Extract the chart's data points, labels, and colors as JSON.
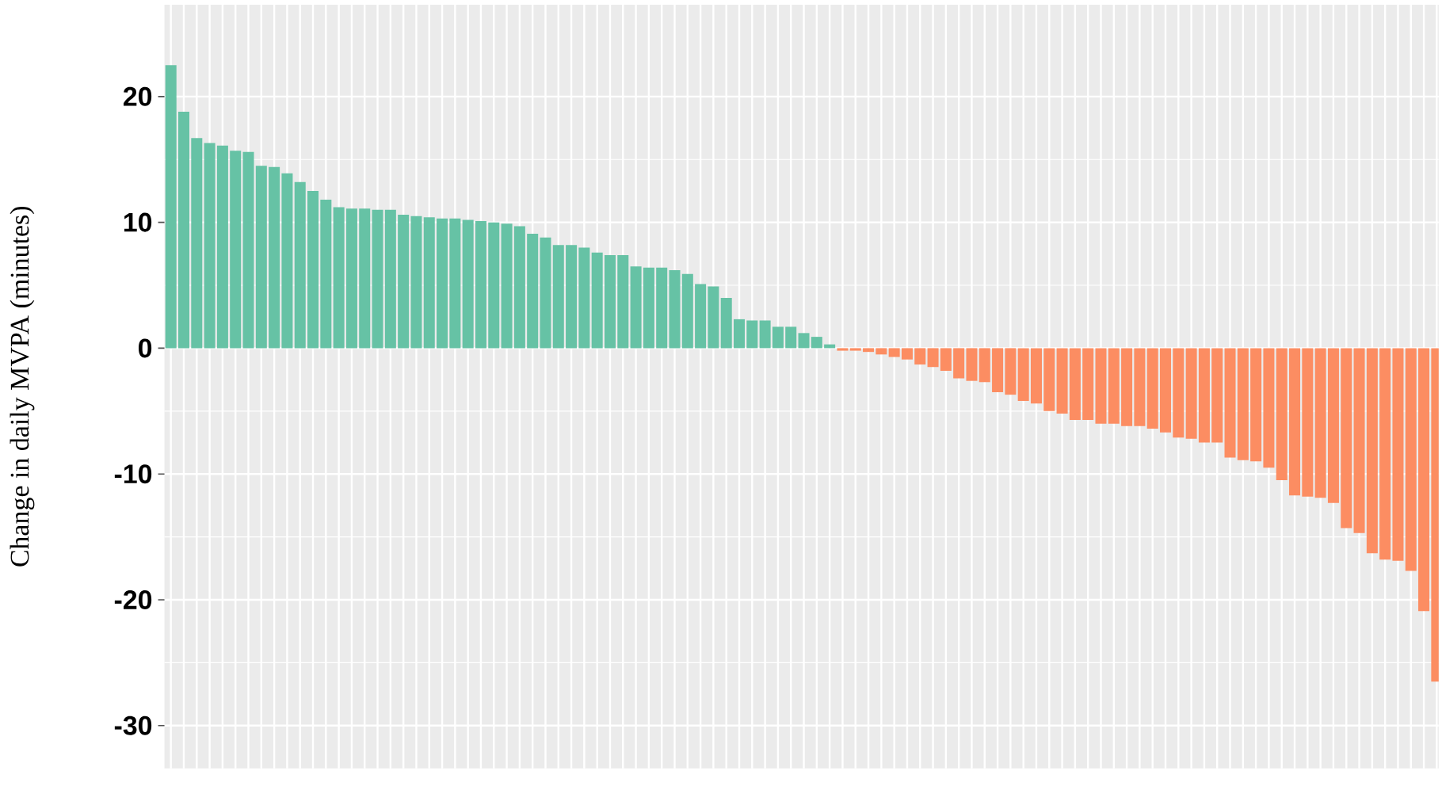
{
  "chart_data": {
    "type": "bar",
    "ylabel": "Change in daily MVPA (minutes)",
    "categories": [
      null,
      null,
      null,
      null,
      null,
      null,
      null,
      null,
      null,
      null,
      null,
      null,
      null,
      null,
      null,
      null,
      null,
      null,
      null,
      null,
      null,
      null,
      null,
      null,
      null,
      null,
      null,
      null,
      null,
      null,
      null,
      null,
      null,
      null,
      null,
      null,
      null,
      null,
      null,
      null,
      null,
      null,
      null,
      null,
      null,
      null,
      null,
      null,
      null,
      null,
      null,
      null,
      null,
      null,
      null,
      null,
      null,
      null,
      null,
      null,
      null,
      null,
      null,
      null,
      null,
      null,
      null,
      null,
      null,
      null,
      null,
      null,
      null,
      null,
      null,
      null,
      null,
      null,
      null,
      null,
      null,
      null,
      null,
      null,
      null,
      null,
      null,
      null,
      null,
      null,
      null,
      null,
      null,
      null,
      null,
      null,
      null,
      null,
      null
    ],
    "values": [
      22.5,
      18.8,
      16.7,
      16.3,
      16.1,
      15.7,
      15.6,
      14.5,
      14.4,
      13.9,
      13.2,
      12.5,
      11.8,
      11.2,
      11.1,
      11.1,
      11.0,
      11.0,
      10.6,
      10.5,
      10.4,
      10.3,
      10.3,
      10.2,
      10.1,
      10.0,
      9.9,
      9.7,
      9.1,
      8.8,
      8.2,
      8.2,
      8.0,
      7.6,
      7.4,
      7.4,
      6.5,
      6.4,
      6.4,
      6.2,
      5.9,
      5.1,
      4.9,
      4.0,
      2.3,
      2.2,
      2.2,
      1.7,
      1.7,
      1.2,
      0.9,
      0.3,
      -0.2,
      -0.2,
      -0.3,
      -0.5,
      -0.7,
      -0.9,
      -1.3,
      -1.5,
      -1.8,
      -2.4,
      -2.6,
      -2.7,
      -3.5,
      -3.7,
      -4.2,
      -4.4,
      -5.0,
      -5.2,
      -5.7,
      -5.7,
      -6.0,
      -6.0,
      -6.2,
      -6.2,
      -6.4,
      -6.7,
      -7.1,
      -7.2,
      -7.5,
      -7.5,
      -8.7,
      -8.9,
      -9.0,
      -9.5,
      -10.5,
      -11.7,
      -11.8,
      -11.9,
      -12.3,
      -14.3,
      -14.7,
      -16.3,
      -16.8,
      -16.9,
      -17.7,
      -20.9,
      -26.5
    ],
    "colors": [
      "#66c2a5",
      "#66c2a5",
      "#66c2a5",
      "#66c2a5",
      "#66c2a5",
      "#66c2a5",
      "#66c2a5",
      "#66c2a5",
      "#66c2a5",
      "#66c2a5",
      "#66c2a5",
      "#66c2a5",
      "#66c2a5",
      "#66c2a5",
      "#66c2a5",
      "#66c2a5",
      "#66c2a5",
      "#66c2a5",
      "#66c2a5",
      "#66c2a5",
      "#66c2a5",
      "#66c2a5",
      "#66c2a5",
      "#66c2a5",
      "#66c2a5",
      "#66c2a5",
      "#66c2a5",
      "#66c2a5",
      "#66c2a5",
      "#66c2a5",
      "#66c2a5",
      "#66c2a5",
      "#66c2a5",
      "#66c2a5",
      "#66c2a5",
      "#66c2a5",
      "#66c2a5",
      "#66c2a5",
      "#66c2a5",
      "#66c2a5",
      "#66c2a5",
      "#66c2a5",
      "#66c2a5",
      "#66c2a5",
      "#66c2a5",
      "#66c2a5",
      "#66c2a5",
      "#66c2a5",
      "#66c2a5",
      "#66c2a5",
      "#66c2a5",
      "#66c2a5",
      "#fc8d62",
      "#fc8d62",
      "#fc8d62",
      "#fc8d62",
      "#fc8d62",
      "#fc8d62",
      "#fc8d62",
      "#fc8d62",
      "#fc8d62",
      "#fc8d62",
      "#fc8d62",
      "#fc8d62",
      "#fc8d62",
      "#fc8d62",
      "#fc8d62",
      "#fc8d62",
      "#fc8d62",
      "#fc8d62",
      "#fc8d62",
      "#fc8d62",
      "#fc8d62",
      "#fc8d62",
      "#fc8d62",
      "#fc8d62",
      "#fc8d62",
      "#fc8d62",
      "#fc8d62",
      "#fc8d62",
      "#fc8d62",
      "#fc8d62",
      "#fc8d62",
      "#fc8d62",
      "#fc8d62",
      "#fc8d62",
      "#fc8d62",
      "#fc8d62",
      "#fc8d62",
      "#fc8d62",
      "#fc8d62",
      "#fc8d62",
      "#fc8d62",
      "#fc8d62",
      "#fc8d62",
      "#fc8d62",
      "#fc8d62",
      "#fc8d62",
      "#fc8d62"
    ],
    "ylim": [
      -33.4,
      27.3
    ],
    "yticks": [
      -30,
      -20,
      -10,
      0,
      10,
      20
    ],
    "grid": true
  }
}
